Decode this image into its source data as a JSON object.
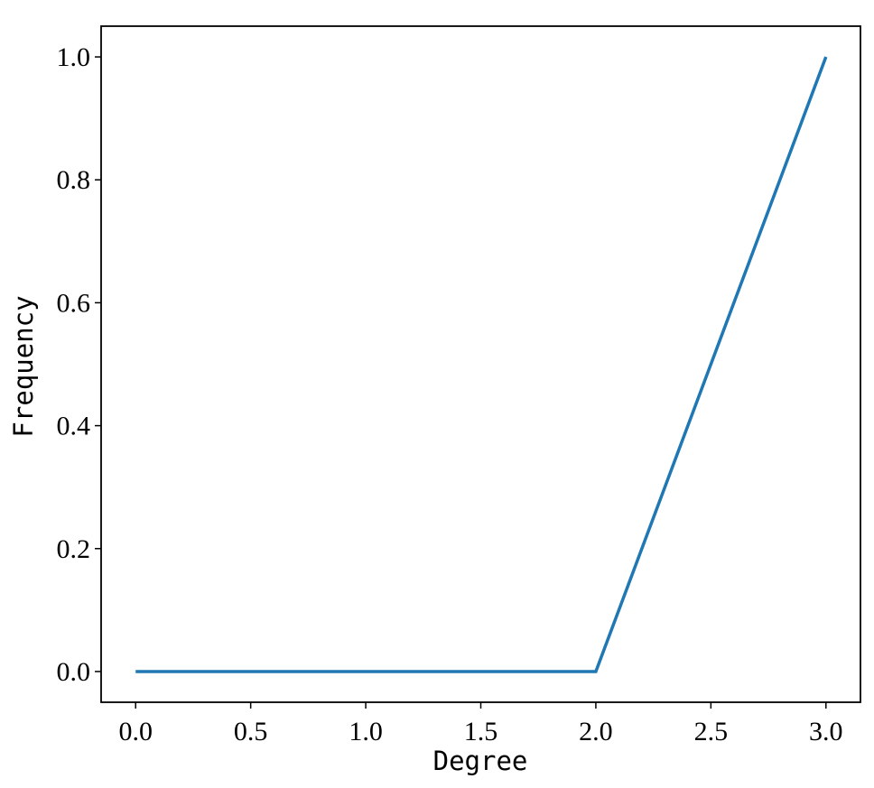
{
  "chart_data": {
    "type": "line",
    "x_label": "Degree",
    "y_label": "Frequency",
    "x": [
      0,
      1,
      2,
      3
    ],
    "series": [
      {
        "color": "#1f77b4",
        "values": [
          0,
          0,
          0,
          1
        ]
      }
    ],
    "xlim": [
      -0.15,
      3.15
    ],
    "ylim": [
      -0.05,
      1.05
    ],
    "xticks": [
      {
        "value": 0,
        "label": "0.0"
      },
      {
        "value": 0.5,
        "label": "0.5"
      },
      {
        "value": 1,
        "label": "1.0"
      },
      {
        "value": 1.5,
        "label": "1.5"
      },
      {
        "value": 2,
        "label": "2.0"
      },
      {
        "value": 2.5,
        "label": "2.5"
      },
      {
        "value": 3,
        "label": "3.0"
      }
    ],
    "yticks": [
      {
        "value": 0,
        "label": "0.0"
      },
      {
        "value": 0.2,
        "label": "0.2"
      },
      {
        "value": 0.4,
        "label": "0.4"
      },
      {
        "value": 0.6,
        "label": "0.6"
      },
      {
        "value": 0.8,
        "label": "0.8"
      },
      {
        "value": 1,
        "label": "1.0"
      }
    ]
  }
}
